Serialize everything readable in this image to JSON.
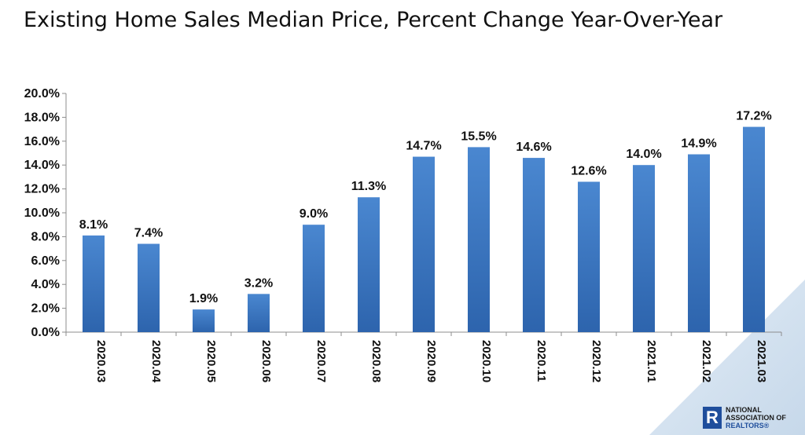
{
  "title": "Existing Home Sales Median Price, Percent Change Year-Over-Year",
  "logo": {
    "text_line1": "NATIONAL",
    "text_line2": "ASSOCIATION OF",
    "text_line3": "REALTORS®",
    "mark": "R"
  },
  "colors": {
    "bar_top": "#4a87d0",
    "bar_bottom": "#2d64ad",
    "accent_triangle": "#d5e3ef",
    "axis": "#8c8c8c",
    "brand_blue": "#1f4e9c"
  },
  "chart_data": {
    "type": "bar",
    "title": "Existing Home Sales Median Price, Percent Change Year-Over-Year",
    "xlabel": "",
    "ylabel": "",
    "ylim": [
      0,
      20
    ],
    "y_ticks": [
      "0.0%",
      "2.0%",
      "4.0%",
      "6.0%",
      "8.0%",
      "10.0%",
      "12.0%",
      "14.0%",
      "16.0%",
      "18.0%",
      "20.0%"
    ],
    "categories": [
      "2020.03",
      "2020.04",
      "2020.05",
      "2020.06",
      "2020.07",
      "2020.08",
      "2020.09",
      "2020.10",
      "2020.11",
      "2020.12",
      "2021.01",
      "2021.02",
      "2021.03"
    ],
    "values": [
      8.1,
      7.4,
      1.9,
      3.2,
      9.0,
      11.3,
      14.7,
      15.5,
      14.6,
      12.6,
      14.0,
      14.9,
      17.2
    ],
    "data_labels": [
      "8.1%",
      "7.4%",
      "1.9%",
      "3.2%",
      "9.0%",
      "11.3%",
      "14.7%",
      "15.5%",
      "14.6%",
      "12.6%",
      "14.0%",
      "14.9%",
      "17.2%"
    ],
    "grid": false,
    "legend": "none"
  }
}
